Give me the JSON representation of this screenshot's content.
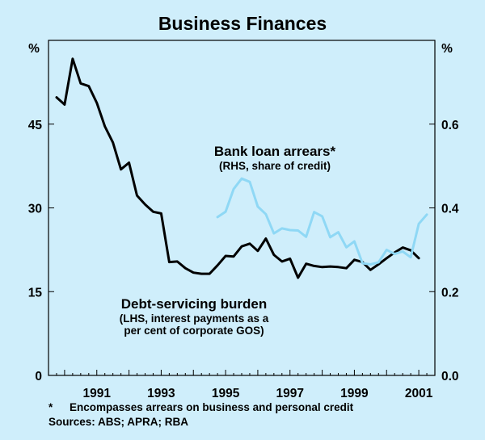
{
  "chart_data": {
    "type": "line",
    "title": "Business Finances",
    "left_axis": {
      "unit": "%",
      "ylim": [
        0,
        60
      ],
      "ticks": [
        "0",
        "15",
        "30",
        "45"
      ]
    },
    "right_axis": {
      "unit": "%",
      "ylim": [
        0,
        0.8
      ],
      "ticks": [
        "0.0",
        "0.2",
        "0.4",
        "0.6"
      ]
    },
    "x_axis": {
      "xlim": [
        1989.5,
        2001.5
      ],
      "major_ticks": [
        "1991",
        "1993",
        "1995",
        "1997",
        "1999",
        "2001"
      ],
      "labels": [
        "1991",
        "1993",
        "1995",
        "1997",
        "1999",
        "2001"
      ]
    },
    "series": [
      {
        "name": "Debt-servicing burden",
        "subtitle": "(LHS, interest payments as a per cent of corporate GOS)",
        "subtitle_lines": [
          "(LHS, interest payments as a",
          "per cent of corporate GOS)"
        ],
        "axis": "left",
        "color": "#000000",
        "x": [
          1989.75,
          1990.0,
          1990.25,
          1990.5,
          1990.75,
          1991.0,
          1991.25,
          1991.5,
          1991.75,
          1992.0,
          1992.25,
          1992.5,
          1992.75,
          1993.0,
          1993.25,
          1993.5,
          1993.75,
          1994.0,
          1994.25,
          1994.5,
          1994.75,
          1995.0,
          1995.25,
          1995.5,
          1995.75,
          1996.0,
          1996.25,
          1996.5,
          1996.75,
          1997.0,
          1997.25,
          1997.5,
          1997.75,
          1998.0,
          1998.25,
          1998.5,
          1998.75,
          1999.0,
          1999.25,
          1999.5,
          1999.75,
          2000.0,
          2000.25,
          2000.5,
          2000.75,
          2001.0
        ],
        "values": [
          49.8,
          48.5,
          56.7,
          52.3,
          51.8,
          48.8,
          44.6,
          41.7,
          36.9,
          38.1,
          32.2,
          30.6,
          29.3,
          29.0,
          20.3,
          20.4,
          19.2,
          18.4,
          18.2,
          18.2,
          19.7,
          21.4,
          21.3,
          23.1,
          23.6,
          22.3,
          24.5,
          21.6,
          20.4,
          20.9,
          17.5,
          20.0,
          19.6,
          19.4,
          19.5,
          19.4,
          19.2,
          20.7,
          20.3,
          18.9,
          19.9,
          21.0,
          22.0,
          22.9,
          22.4,
          21.0
        ]
      },
      {
        "name": "Bank loan arrears*",
        "subtitle": "(RHS, share of credit)",
        "axis": "right",
        "color": "#8fd8f5",
        "x": [
          1994.75,
          1995.0,
          1995.25,
          1995.5,
          1995.75,
          1996.0,
          1996.25,
          1996.5,
          1996.75,
          1997.0,
          1997.25,
          1997.5,
          1997.75,
          1998.0,
          1998.25,
          1998.5,
          1998.75,
          1999.0,
          1999.25,
          1999.5,
          1999.75,
          2000.0,
          2000.25,
          2000.5,
          2000.75,
          2001.0,
          2001.25
        ],
        "values": [
          0.378,
          0.391,
          0.445,
          0.47,
          0.462,
          0.403,
          0.385,
          0.339,
          0.351,
          0.347,
          0.346,
          0.331,
          0.39,
          0.38,
          0.33,
          0.342,
          0.306,
          0.32,
          0.268,
          0.265,
          0.27,
          0.3,
          0.29,
          0.296,
          0.282,
          0.362,
          0.384
        ]
      }
    ],
    "grid": false,
    "legend": "inline labels"
  },
  "footnotes": {
    "marker": "*",
    "note": "Encompasses arrears on business and personal credit",
    "sources": "Sources: ABS; APRA; RBA"
  }
}
